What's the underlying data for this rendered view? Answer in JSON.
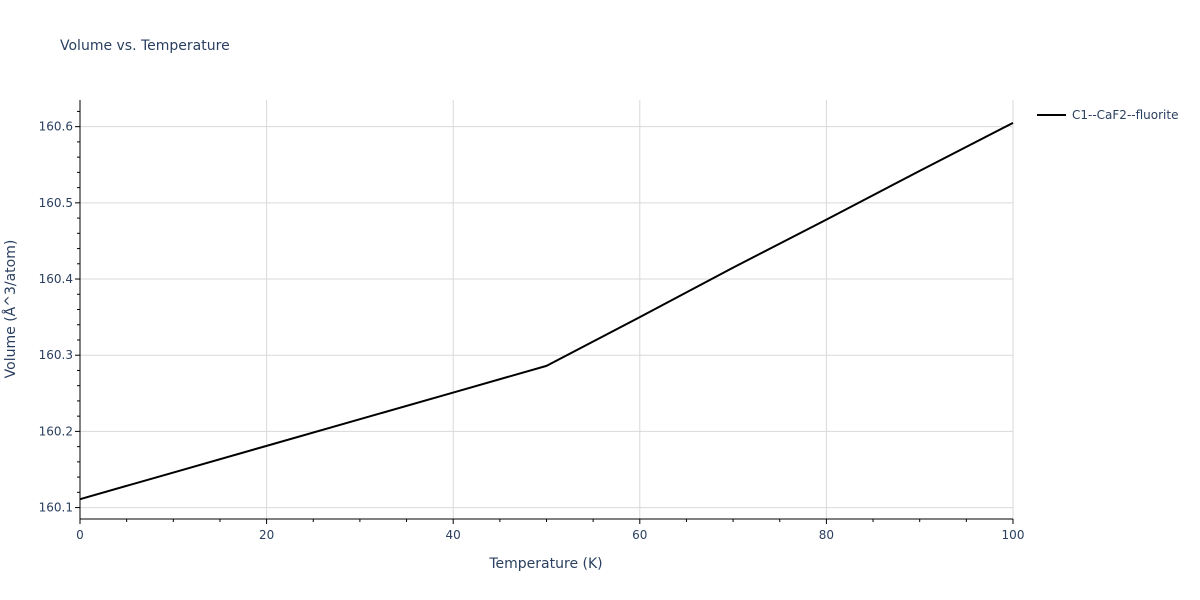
{
  "chart_data": {
    "type": "line",
    "title": "Volume vs. Temperature",
    "xlabel": "Temperature (K)",
    "ylabel": "Volume (Å^3/atom)",
    "xlim": [
      0,
      100
    ],
    "ylim": [
      160.085,
      160.635
    ],
    "xticks": [
      0,
      20,
      40,
      60,
      80,
      100
    ],
    "yticks": [
      160.1,
      160.2,
      160.3,
      160.4,
      160.5,
      160.6
    ],
    "xtick_labels": [
      "0",
      "20",
      "40",
      "60",
      "80",
      "100"
    ],
    "ytick_labels": [
      "160.1",
      "160.2",
      "160.3",
      "160.4",
      "160.5",
      "160.6"
    ],
    "grid": true,
    "legend_position": "top-right outside",
    "series": [
      {
        "name": "C1--CaF2--fluorite",
        "color": "#000000",
        "x": [
          0,
          10,
          20,
          30,
          40,
          50,
          60,
          70,
          80,
          90,
          100
        ],
        "y": [
          160.111,
          160.146,
          160.181,
          160.216,
          160.251,
          160.286,
          160.35,
          160.415,
          160.478,
          160.542,
          160.605
        ]
      }
    ]
  }
}
